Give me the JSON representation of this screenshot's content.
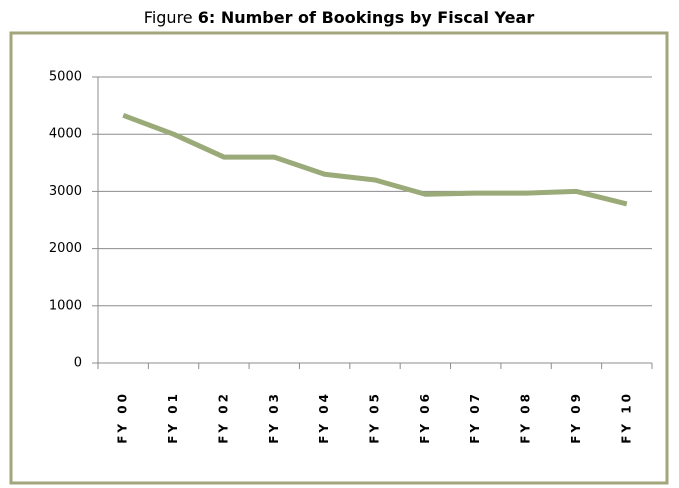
{
  "chart_data": {
    "type": "line",
    "title_prefix": "Figure",
    "title": "6:  Number of Bookings by Fiscal Year",
    "categories": [
      "FY 00",
      "FY 01",
      "FY 02",
      "FY 03",
      "FY 04",
      "FY 05",
      "FY 06",
      "FY 07",
      "FY 08",
      "FY 09",
      "FY 10"
    ],
    "values": [
      4330,
      4000,
      3600,
      3600,
      3300,
      3200,
      2950,
      2970,
      2970,
      3000,
      2780
    ],
    "color": "#9aaa78",
    "ylim": [
      0,
      5000
    ],
    "yticks": [
      0,
      1000,
      2000,
      3000,
      4000,
      5000
    ],
    "grid": true
  }
}
